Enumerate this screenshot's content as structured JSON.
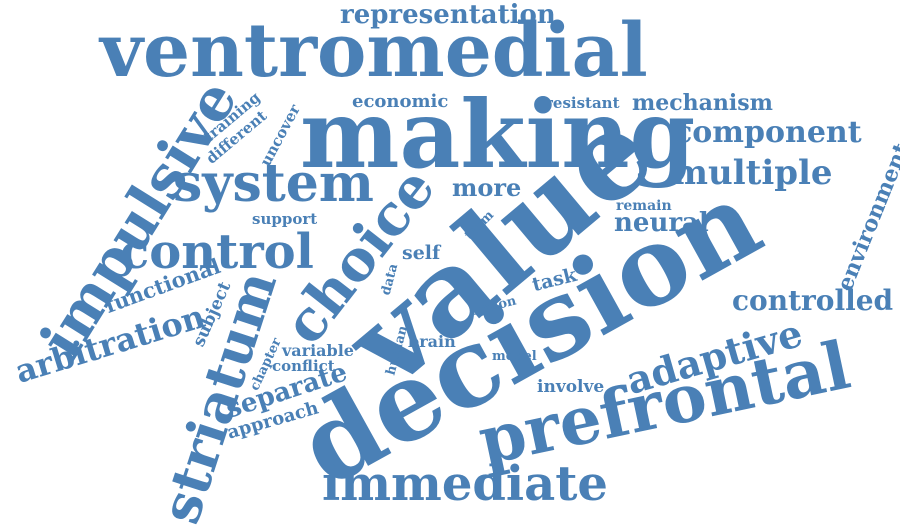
{
  "word_color": "#4a80b6",
  "background_color": "#ffffff",
  "words": {
    "ventromedial": "ventromedial",
    "representation": "representation",
    "making": "making",
    "economic": "economic",
    "resistant": "resistant",
    "mechanism": "mechanism",
    "component": "component",
    "impulsive": "impulsive",
    "training": "training",
    "different": "different",
    "uncover": "uncover",
    "system": "system",
    "more": "more",
    "multiple": "multiple",
    "value": "value",
    "choice": "choice",
    "remain": "remain",
    "neural": "neural",
    "support": "support",
    "term": "term",
    "control": "control",
    "environment": "environment",
    "self": "self",
    "decision": "decision",
    "functional": "functional",
    "data": "data",
    "task": "task",
    "controlled": "controlled",
    "striatum": "striatum",
    "subject": "subject",
    "option": "option",
    "arbitration": "arbitration",
    "human": "human",
    "brain": "brain",
    "adaptive": "adaptive",
    "chapter": "chapter",
    "variable": "variable",
    "model": "model",
    "conflict": "conflict",
    "separate": "separate",
    "involve": "involve",
    "approach": "approach",
    "prefrontal": "prefrontal",
    "immediate": "immediate"
  }
}
